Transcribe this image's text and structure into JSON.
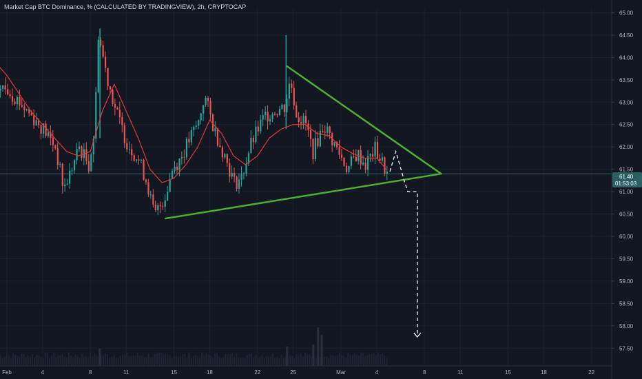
{
  "header": {
    "title": "Market Cap BTC Dominance, % (CALCULATED BY TRADINGVIEW), 2h, CRYPTOCAP"
  },
  "price_tag": {
    "value": "61.40",
    "countdown": "01:53:03"
  },
  "colors": {
    "background": "#131722",
    "up_candle": "#26a69a",
    "down_candle": "#ef5350",
    "moving_average": "#e53935",
    "trendline": "#4caf2f",
    "projection": "#ffffff",
    "price_tag_bg": "#2a5f63"
  },
  "chart_data": {
    "type": "candlestick",
    "symbol": "CRYPTOCAP",
    "interval": "2h",
    "ylim": [
      57.35,
      65.1
    ],
    "y_ticks": [
      "65.00",
      "64.50",
      "64.00",
      "63.50",
      "63.00",
      "62.50",
      "62.00",
      "61.50",
      "61.00",
      "60.50",
      "60.00",
      "59.50",
      "59.00",
      "58.50",
      "58.00",
      "57.50"
    ],
    "x_ticks": [
      "Feb",
      "4",
      "8",
      "11",
      "15",
      "18",
      "22",
      "25",
      "Mar",
      "4",
      "8",
      "11",
      "15",
      "18",
      "22"
    ],
    "x_tick_days": [
      1,
      4,
      8,
      11,
      15,
      18,
      22,
      25,
      29,
      32,
      36,
      39,
      43,
      46,
      50
    ],
    "price_path": [
      [
        1,
        63.3
      ],
      [
        2,
        63.0
      ],
      [
        3,
        62.7
      ],
      [
        4,
        62.4
      ],
      [
        5,
        62.0
      ],
      [
        5.7,
        61.05
      ],
      [
        6.5,
        61.6
      ],
      [
        7,
        62.0
      ],
      [
        7.8,
        61.6
      ],
      [
        8.3,
        62.4
      ],
      [
        8.6,
        64.55
      ],
      [
        9.3,
        63.6
      ],
      [
        10.2,
        62.7
      ],
      [
        11,
        62.1
      ],
      [
        12,
        61.7
      ],
      [
        12.7,
        61.2
      ],
      [
        13.3,
        60.45
      ],
      [
        14.2,
        60.9
      ],
      [
        14.8,
        61.5
      ],
      [
        15.6,
        61.8
      ],
      [
        16.3,
        62.2
      ],
      [
        17,
        62.55
      ],
      [
        17.5,
        63.15
      ],
      [
        18.3,
        62.4
      ],
      [
        19.2,
        61.8
      ],
      [
        20,
        61.2
      ],
      [
        20.6,
        61.3
      ],
      [
        21.3,
        62.0
      ],
      [
        22,
        62.4
      ],
      [
        22.6,
        62.7
      ],
      [
        23.3,
        62.8
      ],
      [
        24.2,
        62.9
      ],
      [
        24.7,
        63.5
      ],
      [
        25.2,
        62.75
      ],
      [
        26,
        62.5
      ],
      [
        26.6,
        61.9
      ],
      [
        27.5,
        62.5
      ],
      [
        28.3,
        62.1
      ],
      [
        29.5,
        61.5
      ],
      [
        30.3,
        61.85
      ],
      [
        31,
        61.6
      ],
      [
        31.8,
        61.95
      ],
      [
        32.3,
        61.7
      ],
      [
        32.8,
        61.4
      ]
    ],
    "spikes": [
      {
        "x": 8.8,
        "high": 64.65,
        "low": 62.2
      },
      {
        "x": 24.4,
        "high": 64.5,
        "low": 62.4
      }
    ],
    "moving_average": [
      [
        0,
        63.9
      ],
      [
        1,
        63.6
      ],
      [
        2,
        63.2
      ],
      [
        3,
        62.8
      ],
      [
        4,
        62.5
      ],
      [
        5,
        62.2
      ],
      [
        6,
        61.9
      ],
      [
        7,
        61.8
      ],
      [
        8,
        61.9
      ],
      [
        9,
        62.8
      ],
      [
        10,
        63.4
      ],
      [
        11,
        62.8
      ],
      [
        12,
        62.2
      ],
      [
        13,
        61.5
      ],
      [
        14,
        61.2
      ],
      [
        15,
        61.3
      ],
      [
        16,
        61.6
      ],
      [
        17,
        62.0
      ],
      [
        18,
        62.6
      ],
      [
        19,
        62.3
      ],
      [
        20,
        61.8
      ],
      [
        21,
        61.6
      ],
      [
        22,
        61.8
      ],
      [
        23,
        62.2
      ],
      [
        24,
        62.4
      ],
      [
        25,
        62.5
      ],
      [
        26,
        62.5
      ],
      [
        27,
        62.3
      ],
      [
        28,
        62.25
      ],
      [
        29,
        62.0
      ],
      [
        30,
        61.85
      ],
      [
        31,
        61.75
      ],
      [
        32,
        61.75
      ],
      [
        32.8,
        61.5
      ]
    ],
    "last_price": 61.4,
    "triangle": {
      "upper": [
        [
          24.5,
          63.8
        ],
        [
          37.4,
          61.4
        ]
      ],
      "lower": [
        [
          14.3,
          60.4
        ],
        [
          37.4,
          61.4
        ]
      ]
    },
    "projection": [
      [
        33.1,
        61.45
      ],
      [
        33.6,
        61.9
      ],
      [
        34.3,
        61.25
      ],
      [
        34.6,
        61.0
      ],
      [
        35.4,
        61.0
      ],
      [
        35.4,
        57.75
      ]
    ],
    "volume": [
      {
        "x": 27.0,
        "value": 0.4
      },
      {
        "x": 27.3,
        "value": 0.32
      },
      {
        "x": 26.6,
        "value": 0.22
      },
      {
        "x": 8.7,
        "value": 0.18
      },
      {
        "x": 24.4,
        "value": 0.2
      }
    ],
    "volume_baseline": 0.08
  }
}
